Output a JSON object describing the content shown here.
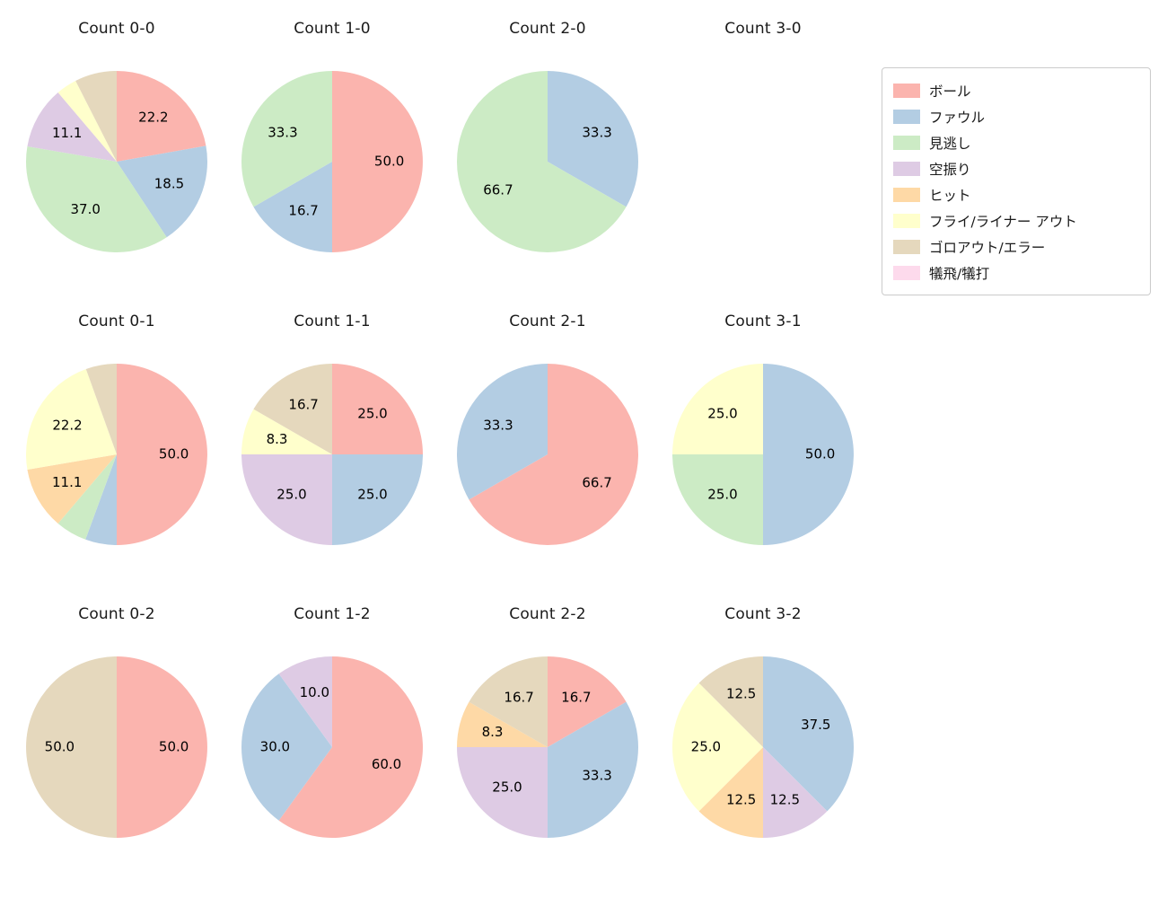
{
  "page": {
    "background": "#ffffff"
  },
  "legend": {
    "items": [
      {
        "label": "ボール",
        "color": "#fbb4ae"
      },
      {
        "label": "ファウル",
        "color": "#b3cde3"
      },
      {
        "label": "見逃し",
        "color": "#ccebc5"
      },
      {
        "label": "空振り",
        "color": "#decbe4"
      },
      {
        "label": "ヒット",
        "color": "#fed9a6"
      },
      {
        "label": "フライ/ライナー アウト",
        "color": "#ffffcc"
      },
      {
        "label": "ゴロアウト/エラー",
        "color": "#e5d8bd"
      },
      {
        "label": "犠飛/犠打",
        "color": "#fddaec"
      }
    ]
  },
  "chart_data": [
    {
      "type": "pie",
      "title": "Count 0-0",
      "slices": [
        {
          "label": "ボール",
          "value": 22.2,
          "label_visible": true
        },
        {
          "label": "ファウル",
          "value": 18.5,
          "label_visible": true
        },
        {
          "label": "見逃し",
          "value": 37.0,
          "label_visible": true
        },
        {
          "label": "空振り",
          "value": 11.1,
          "label_visible": true
        },
        {
          "label": "フライ/ライナー アウト",
          "value": 3.7,
          "label_visible": false
        },
        {
          "label": "ゴロアウト/エラー",
          "value": 7.5,
          "label_visible": false
        }
      ]
    },
    {
      "type": "pie",
      "title": "Count 1-0",
      "slices": [
        {
          "label": "ボール",
          "value": 50.0,
          "label_visible": true
        },
        {
          "label": "ファウル",
          "value": 16.7,
          "label_visible": true
        },
        {
          "label": "見逃し",
          "value": 33.3,
          "label_visible": true
        }
      ]
    },
    {
      "type": "pie",
      "title": "Count 2-0",
      "slices": [
        {
          "label": "ファウル",
          "value": 33.3,
          "label_visible": true
        },
        {
          "label": "見逃し",
          "value": 66.7,
          "label_visible": true
        }
      ]
    },
    {
      "type": "pie",
      "title": "Count 3-0",
      "slices": []
    },
    {
      "type": "pie",
      "title": "Count 0-1",
      "slices": [
        {
          "label": "ボール",
          "value": 50.0,
          "label_visible": true
        },
        {
          "label": "ファウル",
          "value": 5.6,
          "label_visible": false
        },
        {
          "label": "見逃し",
          "value": 5.6,
          "label_visible": false
        },
        {
          "label": "ヒット",
          "value": 11.1,
          "label_visible": true
        },
        {
          "label": "フライ/ライナー アウト",
          "value": 22.2,
          "label_visible": true
        },
        {
          "label": "ゴロアウト/エラー",
          "value": 5.5,
          "label_visible": false
        }
      ]
    },
    {
      "type": "pie",
      "title": "Count 1-1",
      "slices": [
        {
          "label": "ボール",
          "value": 25.0,
          "label_visible": true
        },
        {
          "label": "ファウル",
          "value": 25.0,
          "label_visible": true
        },
        {
          "label": "空振り",
          "value": 25.0,
          "label_visible": true
        },
        {
          "label": "フライ/ライナー アウト",
          "value": 8.3,
          "label_visible": true
        },
        {
          "label": "ゴロアウト/エラー",
          "value": 16.7,
          "label_visible": true
        }
      ]
    },
    {
      "type": "pie",
      "title": "Count 2-1",
      "slices": [
        {
          "label": "ボール",
          "value": 66.7,
          "label_visible": true
        },
        {
          "label": "ファウル",
          "value": 33.3,
          "label_visible": true
        }
      ]
    },
    {
      "type": "pie",
      "title": "Count 3-1",
      "slices": [
        {
          "label": "ファウル",
          "value": 50.0,
          "label_visible": true
        },
        {
          "label": "見逃し",
          "value": 25.0,
          "label_visible": true
        },
        {
          "label": "フライ/ライナー アウト",
          "value": 25.0,
          "label_visible": true
        }
      ]
    },
    {
      "type": "pie",
      "title": "Count 0-2",
      "slices": [
        {
          "label": "ボール",
          "value": 50.0,
          "label_visible": true
        },
        {
          "label": "ゴロアウト/エラー",
          "value": 50.0,
          "label_visible": true
        }
      ]
    },
    {
      "type": "pie",
      "title": "Count 1-2",
      "slices": [
        {
          "label": "ボール",
          "value": 60.0,
          "label_visible": true
        },
        {
          "label": "ファウル",
          "value": 30.0,
          "label_visible": true
        },
        {
          "label": "空振り",
          "value": 10.0,
          "label_visible": true
        }
      ]
    },
    {
      "type": "pie",
      "title": "Count 2-2",
      "slices": [
        {
          "label": "ボール",
          "value": 16.7,
          "label_visible": true
        },
        {
          "label": "ファウル",
          "value": 33.3,
          "label_visible": true
        },
        {
          "label": "空振り",
          "value": 25.0,
          "label_visible": true
        },
        {
          "label": "ヒット",
          "value": 8.3,
          "label_visible": true
        },
        {
          "label": "ゴロアウト/エラー",
          "value": 16.7,
          "label_visible": true
        }
      ]
    },
    {
      "type": "pie",
      "title": "Count 3-2",
      "slices": [
        {
          "label": "ファウル",
          "value": 37.5,
          "label_visible": true
        },
        {
          "label": "空振り",
          "value": 12.5,
          "label_visible": true
        },
        {
          "label": "ヒット",
          "value": 12.5,
          "label_visible": true
        },
        {
          "label": "フライ/ライナー アウト",
          "value": 25.0,
          "label_visible": true
        },
        {
          "label": "ゴロアウト/エラー",
          "value": 12.5,
          "label_visible": true
        }
      ]
    }
  ]
}
